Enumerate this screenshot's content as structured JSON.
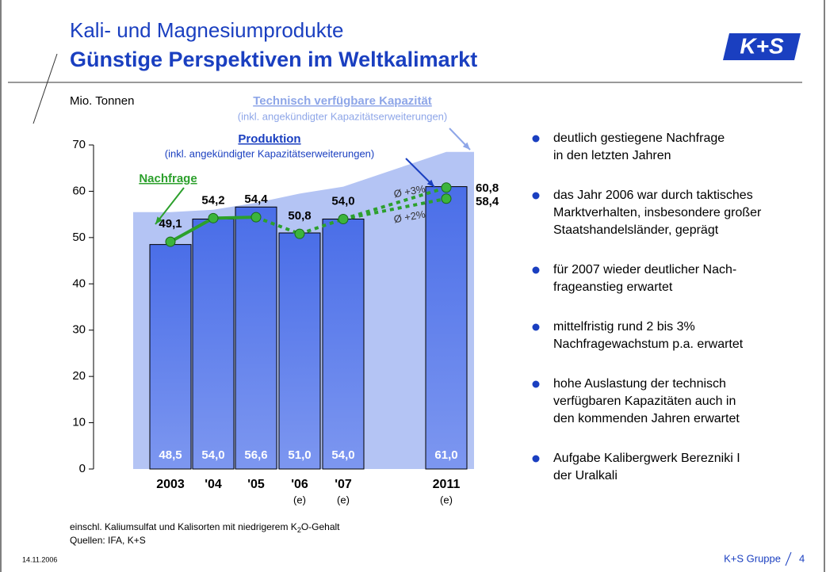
{
  "header": {
    "title": "Kali- und Magnesiumprodukte",
    "subtitle": "Günstige Perspektiven im Weltkalimarkt",
    "logo": "K+S"
  },
  "chart_data": {
    "type": "bar",
    "y_label": "Mio. Tonnen",
    "categories": [
      "2003",
      "'04",
      "'05",
      "'06",
      "'07",
      "2011"
    ],
    "category_notes": [
      null,
      null,
      null,
      "(e)",
      "(e)",
      "(e)"
    ],
    "ylim": [
      0,
      70
    ],
    "yticks": [
      0,
      10,
      20,
      30,
      40,
      50,
      60,
      70
    ],
    "series": [
      {
        "name": "Technisch verfügbare Kapazität",
        "note": "(inkl. angekündigter Kapazitätserweiterungen)",
        "color": "#b4c4f4",
        "values": [
          55.5,
          56,
          57.5,
          59.5,
          61,
          68.5
        ]
      },
      {
        "name": "Produktion",
        "note": "(inkl. angekündigter Kapazitätserweiterungen)",
        "color": "#4a6ee8",
        "values": [
          48.5,
          54.0,
          56.6,
          51.0,
          54.0,
          61.0
        ],
        "value_labels": [
          "48,5",
          "54,0",
          "56,6",
          "51,0",
          "54,0",
          "61,0"
        ]
      },
      {
        "name": "Nachfrage",
        "color": "#2ca02c",
        "values": [
          49.1,
          54.2,
          54.4,
          50.8,
          54.0,
          null
        ],
        "value_labels": [
          "49,1",
          "54,2",
          "54,4",
          "50,8",
          "54,0",
          null
        ]
      }
    ],
    "demand_scenarios": [
      {
        "label": "Ø +3%",
        "value": 60.8,
        "value_label": "60,8"
      },
      {
        "label": "Ø +2%",
        "value": 58.4,
        "value_label": "58,4"
      }
    ],
    "footnote": [
      "einschl. Kaliumsulfat und Kalisorten mit niedrigerem K",
      "2",
      "O-Gehalt"
    ],
    "source": "Quellen: IFA, K+S"
  },
  "bullets": [
    [
      "deutlich gestiegene Nachfrage",
      "in den letzten Jahren"
    ],
    [
      "das Jahr 2006 war durch taktisches",
      "Marktverhalten, insbesondere großer",
      "Staatshandelsländer, geprägt"
    ],
    [
      "für 2007 wieder deutlicher Nach-",
      "frageanstieg erwartet"
    ],
    [
      "mittelfristig rund 2 bis 3%",
      "Nachfragewachstum p.a. erwartet"
    ],
    [
      "hohe Auslastung der technisch",
      "verfügbaren Kapazitäten auch in",
      "den kommenden Jahren erwartet"
    ],
    [
      "Aufgabe Kalibergwerk Berezniki I",
      "der Uralkali"
    ]
  ],
  "footer": {
    "date": "14.11.2006",
    "company": "K+S Gruppe",
    "page": "4"
  }
}
